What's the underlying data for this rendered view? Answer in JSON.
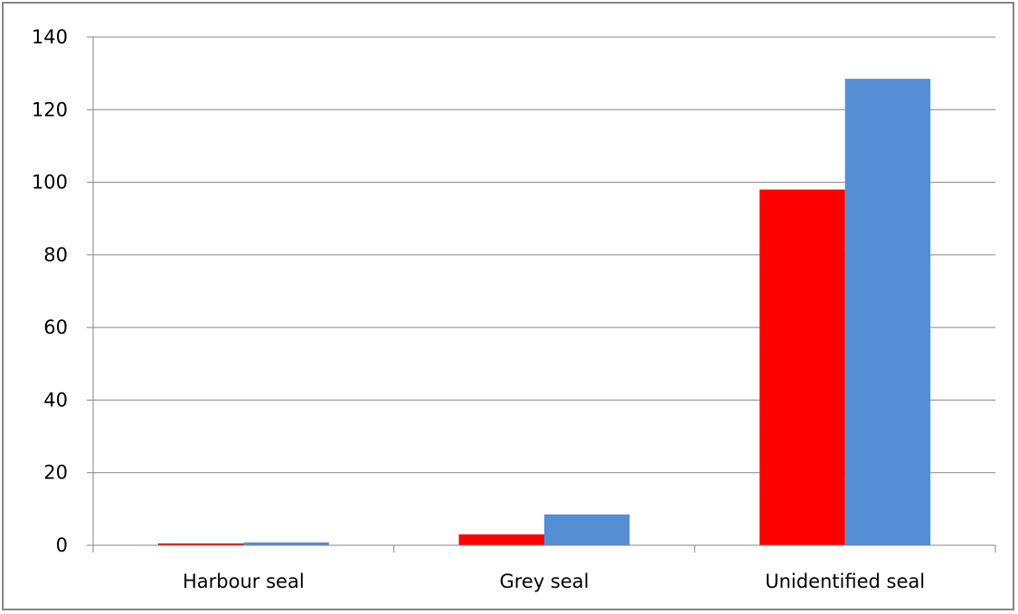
{
  "chart_data": {
    "type": "bar",
    "categories": [
      "Harbour seal",
      "Grey seal",
      "Unidentified seal"
    ],
    "series": [
      {
        "color": "#ff0000",
        "values": [
          0.5,
          3,
          98
        ]
      },
      {
        "color": "#558ed5",
        "values": [
          0.8,
          8.5,
          128.5
        ]
      }
    ],
    "ylim": [
      0,
      140
    ],
    "yticks": [
      0,
      20,
      40,
      60,
      80,
      100,
      120,
      140
    ],
    "grid": true,
    "legend": "none"
  }
}
